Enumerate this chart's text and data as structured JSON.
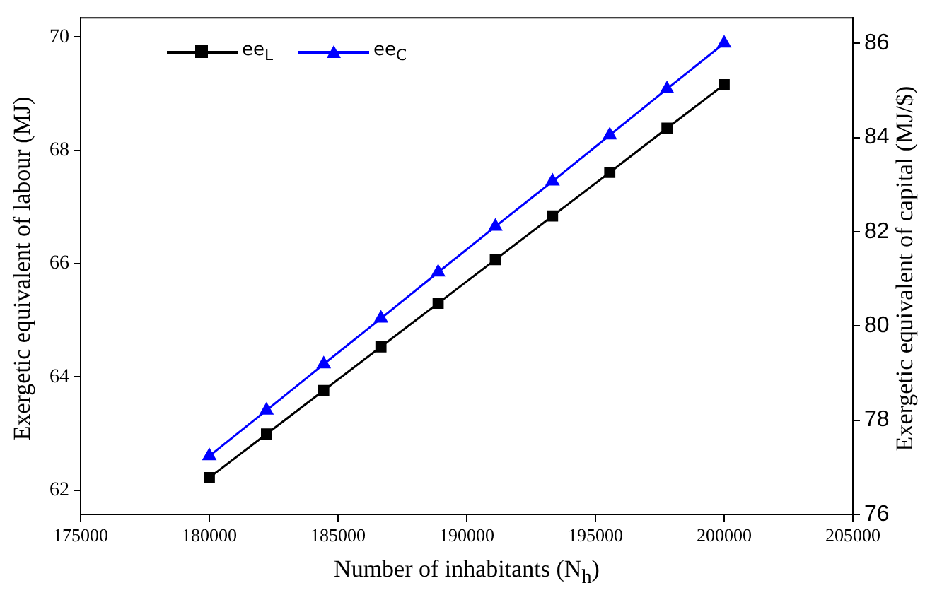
{
  "chart_data": {
    "type": "line",
    "xlabel": "Number of inhabitants (N$_{h}$)",
    "ylabel": "Exergetic equivalent of labour (MJ)",
    "y2label": "Exergetic equivalent of capital (MJ/$)",
    "x": [
      180000,
      182222,
      184444,
      186667,
      188889,
      191111,
      193333,
      195556,
      197778,
      200000
    ],
    "series": [
      {
        "name": "ee$_{L}$",
        "color": "#000000",
        "marker": "square",
        "values": [
          62.22,
          62.99,
          63.76,
          64.53,
          65.3,
          66.07,
          66.84,
          67.61,
          68.39,
          69.16
        ]
      },
      {
        "name": "ee$_{C}$",
        "color": "#0000ff",
        "marker": "triangle",
        "axis": "y2",
        "values": [
          77.24,
          78.21,
          79.19,
          80.16,
          81.14,
          82.11,
          83.07,
          84.05,
          85.03,
          86.0
        ]
      }
    ],
    "xlim": [
      175000,
      205000
    ],
    "xticks": [
      175000,
      180000,
      185000,
      190000,
      195000,
      200000,
      205000
    ],
    "ylim": [
      61.57,
      70.34
    ],
    "yticks": [
      62,
      64,
      66,
      68,
      70
    ],
    "y2lim": [
      76,
      86.54
    ],
    "y2ticks": [
      76,
      78,
      80,
      82,
      84,
      86
    ],
    "grid": false,
    "legend": "top left",
    "line_style": "solid"
  }
}
